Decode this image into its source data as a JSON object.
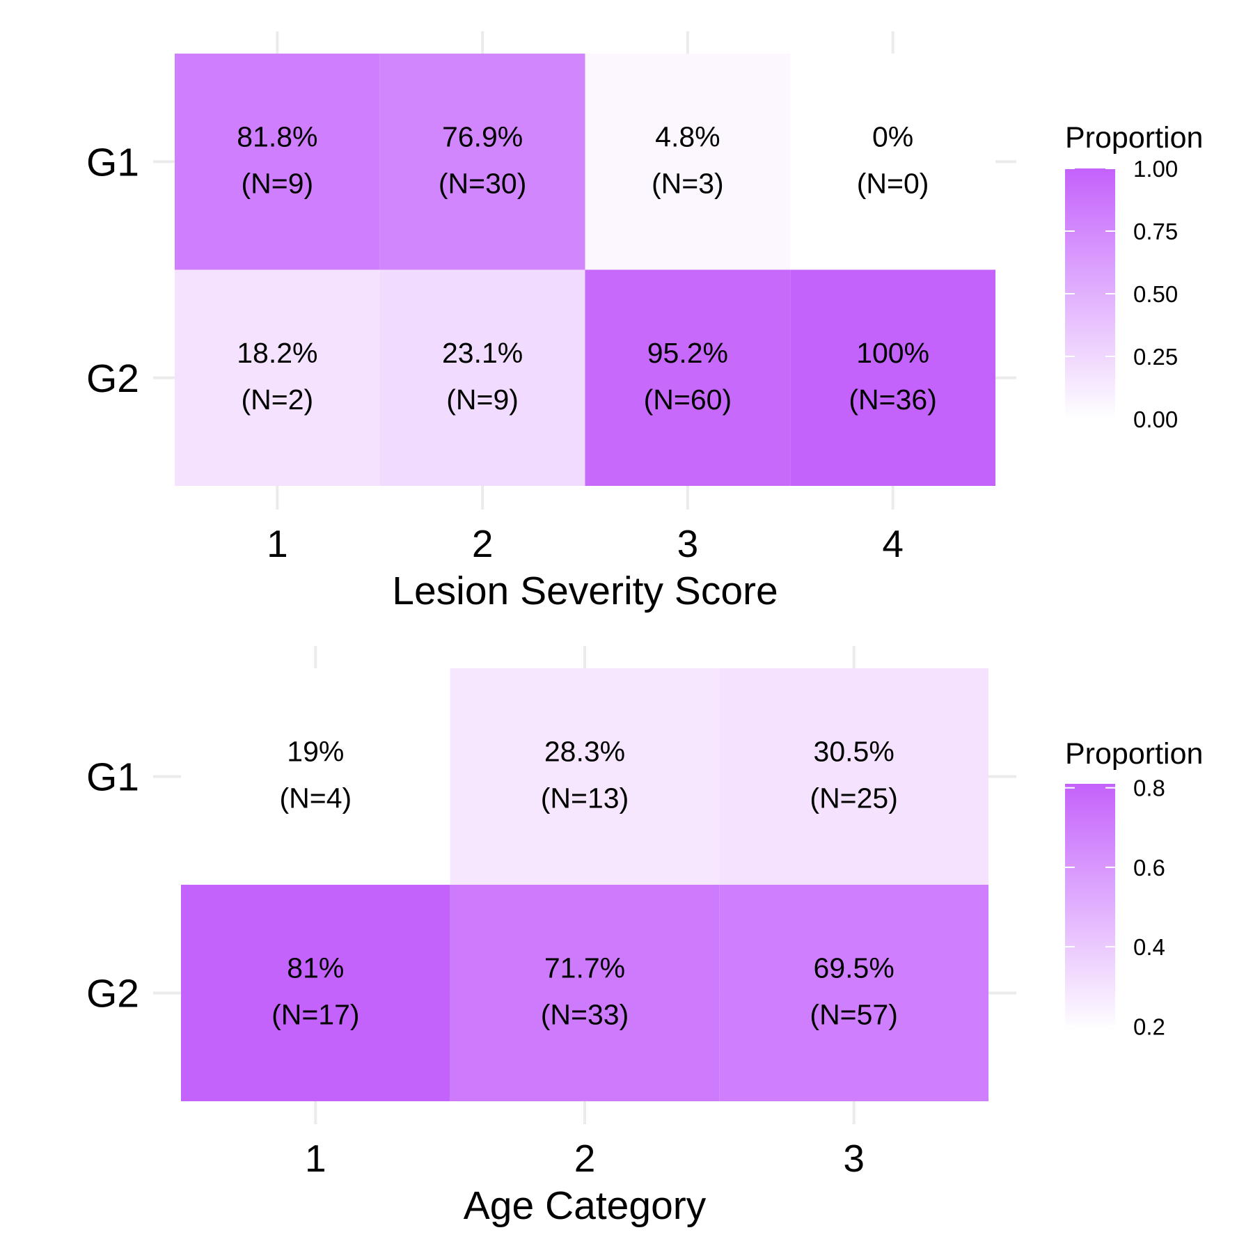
{
  "chart_data": [
    {
      "type": "heatmap",
      "xlabel": "Lesion Severity Score",
      "ylabel": "",
      "x_categories": [
        "1",
        "2",
        "3",
        "4"
      ],
      "y_categories": [
        "G1",
        "G2"
      ],
      "cells": [
        {
          "x": "1",
          "y": "G1",
          "value": 0.818,
          "label": "81.8%",
          "n_label": "(N=9)"
        },
        {
          "x": "2",
          "y": "G1",
          "value": 0.769,
          "label": "76.9%",
          "n_label": "(N=30)"
        },
        {
          "x": "3",
          "y": "G1",
          "value": 0.048,
          "label": "4.8%",
          "n_label": "(N=3)"
        },
        {
          "x": "4",
          "y": "G1",
          "value": 0.0,
          "label": "0%",
          "n_label": "(N=0)"
        },
        {
          "x": "1",
          "y": "G2",
          "value": 0.182,
          "label": "18.2%",
          "n_label": "(N=2)"
        },
        {
          "x": "2",
          "y": "G2",
          "value": 0.231,
          "label": "23.1%",
          "n_label": "(N=9)"
        },
        {
          "x": "3",
          "y": "G2",
          "value": 0.952,
          "label": "95.2%",
          "n_label": "(N=60)"
        },
        {
          "x": "4",
          "y": "G2",
          "value": 1.0,
          "label": "100%",
          "n_label": "(N=36)"
        }
      ],
      "legend": {
        "title": "Proportion",
        "placement": "right",
        "range": [
          0.0,
          1.0
        ],
        "ticks": [
          1.0,
          0.75,
          0.5,
          0.25,
          0.0
        ],
        "tick_labels": [
          "1.00",
          "0.75",
          "0.50",
          "0.25",
          "0.00"
        ]
      },
      "colors": {
        "low": "#ffffff",
        "high": "#c462fc"
      },
      "grid": true
    },
    {
      "type": "heatmap",
      "xlabel": "Age Category",
      "ylabel": "",
      "x_categories": [
        "1",
        "2",
        "3"
      ],
      "y_categories": [
        "G1",
        "G2"
      ],
      "cells": [
        {
          "x": "1",
          "y": "G1",
          "value": 0.19,
          "label": "19%",
          "n_label": "(N=4)"
        },
        {
          "x": "2",
          "y": "G1",
          "value": 0.283,
          "label": "28.3%",
          "n_label": "(N=13)"
        },
        {
          "x": "3",
          "y": "G1",
          "value": 0.305,
          "label": "30.5%",
          "n_label": "(N=25)"
        },
        {
          "x": "1",
          "y": "G2",
          "value": 0.81,
          "label": "81%",
          "n_label": "(N=17)"
        },
        {
          "x": "2",
          "y": "G2",
          "value": 0.717,
          "label": "71.7%",
          "n_label": "(N=33)"
        },
        {
          "x": "3",
          "y": "G2",
          "value": 0.695,
          "label": "69.5%",
          "n_label": "(N=57)"
        }
      ],
      "legend": {
        "title": "Proportion",
        "placement": "right",
        "range": [
          0.19,
          0.81
        ],
        "ticks": [
          0.8,
          0.6,
          0.4,
          0.2
        ],
        "tick_labels": [
          "0.8",
          "0.6",
          "0.4",
          "0.2"
        ]
      },
      "colors": {
        "low": "#ffffff",
        "high": "#c462fc"
      },
      "grid": true
    }
  ]
}
